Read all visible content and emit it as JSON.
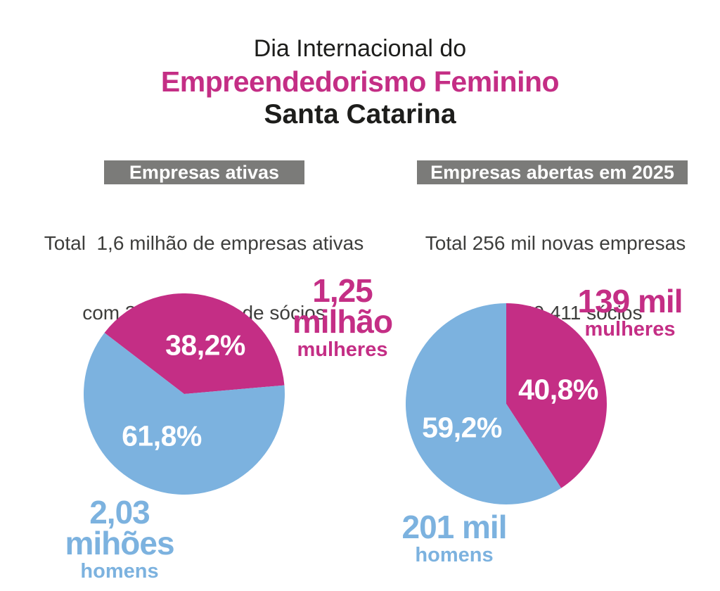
{
  "title": {
    "line1": "Dia Internacional do",
    "line2": "Empreendedorismo Feminino",
    "line3": "Santa Catarina"
  },
  "colors": {
    "magenta": "#c42e85",
    "blue": "#7cb2df",
    "badge_gray": "#7b7b79",
    "text_dark": "#1d1d1b",
    "pct_text": "#ffffff"
  },
  "sections": {
    "active": {
      "badge": "Empresas ativas",
      "desc_line1": "Total  1,6 milhão de empresas ativas",
      "desc_line2": "com 3,28 milhões de sócios"
    },
    "opened2025": {
      "badge": "Empresas abertas em 2025",
      "desc_line1": "Total 256 mil novas empresas",
      "desc_line2": "com 340.411 sócios"
    }
  },
  "chart_data": [
    {
      "type": "pie",
      "title": "Empresas ativas",
      "total": "1,6 milhão de empresas ativas, 3,28 milhões de sócios",
      "start_angle_deg_from_top_cw": -52.5,
      "slices": [
        {
          "label": "mulheres",
          "value": 38.2,
          "display": "38,2%",
          "color": "#c42e85",
          "annotation": [
            "1,25",
            "milhão",
            "mulheres"
          ]
        },
        {
          "label": "homens",
          "value": 61.8,
          "display": "61,8%",
          "color": "#7cb2df",
          "annotation": [
            "2,03",
            "mihões",
            "homens"
          ]
        }
      ],
      "legend_position": "outside-labels",
      "grid": false
    },
    {
      "type": "pie",
      "title": "Empresas abertas em 2025",
      "total": "256 mil novas empresas, 340.411 sócios",
      "start_angle_deg_from_top_cw": 0,
      "slices": [
        {
          "label": "mulheres",
          "value": 40.8,
          "display": "40,8%",
          "color": "#c42e85",
          "annotation": [
            "139 mil",
            "mulheres"
          ]
        },
        {
          "label": "homens",
          "value": 59.2,
          "display": "59,2%",
          "color": "#7cb2df",
          "annotation": [
            "201 mil",
            "homens"
          ]
        }
      ],
      "legend_position": "outside-labels",
      "grid": false
    }
  ]
}
